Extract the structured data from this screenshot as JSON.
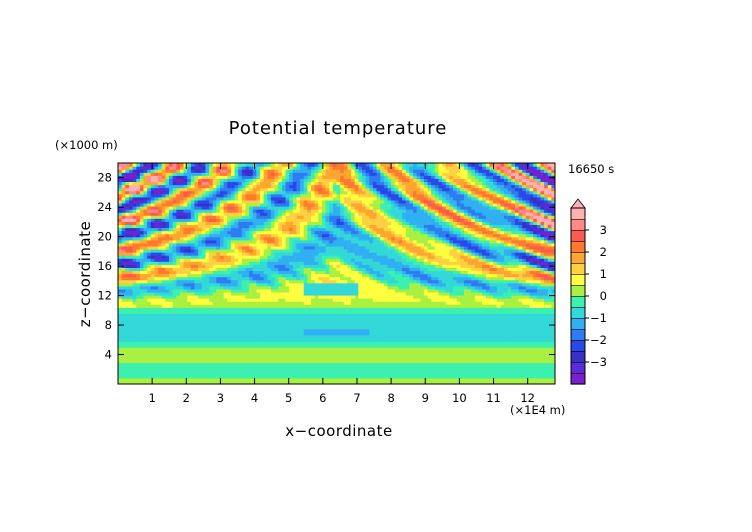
{
  "chart_data": {
    "type": "heatmap",
    "title": "Potential temperature",
    "xlabel": "x−coordinate",
    "ylabel": "z−coordinate",
    "x_unit": "(×1E4 m)",
    "y_unit": "(×1000 m)",
    "time_label": "16650 s",
    "xlim": [
      0,
      12.8
    ],
    "ylim": [
      0,
      30
    ],
    "x_ticks": [
      1,
      2,
      3,
      4,
      5,
      6,
      7,
      8,
      9,
      10,
      11,
      12
    ],
    "y_ticks": [
      4,
      8,
      12,
      16,
      20,
      24,
      28
    ],
    "colorbar": {
      "min": -4,
      "max": 4,
      "step": 0.5,
      "tick_labels": [
        "3",
        "2",
        "1",
        "0",
        "−1",
        "−2",
        "−3"
      ],
      "tick_values": [
        3,
        2,
        1,
        0,
        -1,
        -2,
        -3
      ],
      "colors": {
        "-4": "#7a1fd0",
        "-3.5": "#5a2bd8",
        "-3": "#3a30c8",
        "-2.5": "#2a48e8",
        "-2": "#2f7cf2",
        "-1.5": "#30b0f2",
        "-1": "#33d8d8",
        "-0.5": "#3cf0b0",
        "0": "#aaf040",
        "0.5": "#ffff40",
        "1": "#ffd040",
        "1.5": "#ffa630",
        "2": "#ff7a30",
        "2.5": "#ff5a50",
        "3": "#ff8a8a",
        "3.5": "#ffb0b0"
      }
    },
    "field_description_rows": [
      {
        "z": 2,
        "value": -0.3
      },
      {
        "z": 4,
        "value": 0.2
      },
      {
        "z": 6,
        "value": -0.6
      },
      {
        "z": 9,
        "value": -0.6
      },
      {
        "z": 12,
        "value": 0.3
      },
      {
        "z": 14,
        "value": 0.6
      },
      {
        "z": 16,
        "value": -0.6
      },
      {
        "z": 18,
        "value": 1.4
      },
      {
        "z": 20,
        "value": -0.5
      },
      {
        "z": 22,
        "value": 1.2
      },
      {
        "z": 24,
        "value": -1.5
      },
      {
        "z": 26,
        "value": 1.8
      },
      {
        "z": 28,
        "value": 0.4
      }
    ]
  }
}
